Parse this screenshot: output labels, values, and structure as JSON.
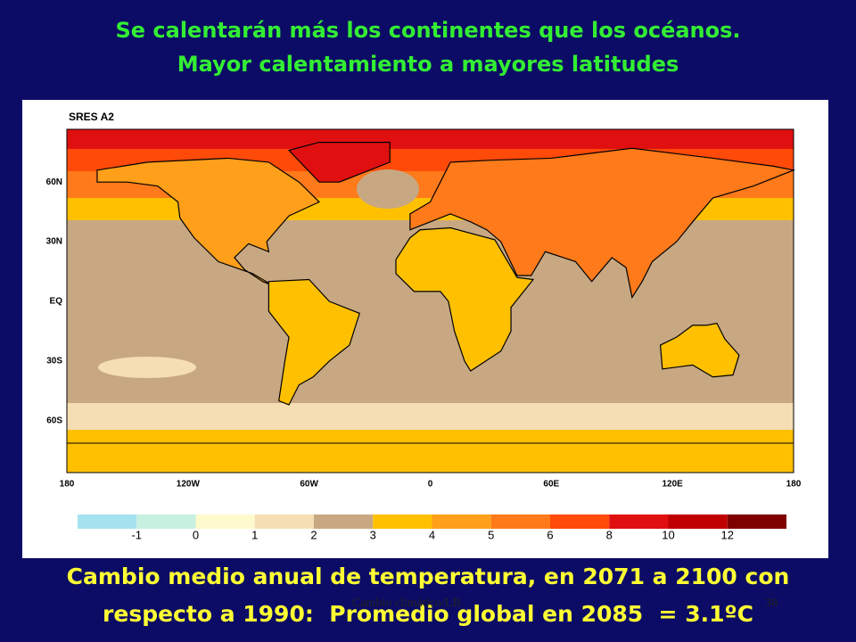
{
  "title": [
    "Se calentarán más los continentes que los océanos.",
    "Mayor calentamiento a mayores latitudes"
  ],
  "map": {
    "label": "SRES A2",
    "lat_labels": [
      "60N",
      "30N",
      "EQ",
      "30S",
      "60S"
    ],
    "lon_labels": [
      "180",
      "120W",
      "60W",
      "0",
      "60E",
      "120E",
      "180"
    ],
    "colorbar_labels": [
      -1,
      0,
      1,
      2,
      3,
      4,
      5,
      6,
      8,
      10,
      12
    ]
  },
  "caption": [
    "Cambio medio anual de temperatura, en 2071 a 2100 con",
    "respecto a 1990:  Promedio global en 2085  = 3.1ºC"
  ],
  "footer": {
    "text": "Cambio climático/LB",
    "page": 38
  }
}
